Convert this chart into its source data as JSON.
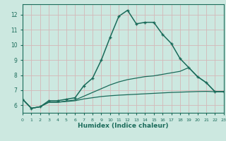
{
  "xlabel": "Humidex (Indice chaleur)",
  "bg_color": "#cce8e0",
  "grid_color": "#b8d8d0",
  "line_color": "#1a6b5a",
  "spine_color": "#1a6b5a",
  "x_data": [
    0,
    1,
    2,
    3,
    4,
    5,
    6,
    7,
    8,
    9,
    10,
    11,
    12,
    13,
    14,
    15,
    16,
    17,
    18,
    19,
    20,
    21,
    22,
    23
  ],
  "main_line": [
    6.4,
    5.8,
    5.9,
    6.3,
    6.3,
    6.4,
    6.5,
    7.3,
    7.8,
    9.0,
    10.5,
    11.9,
    12.3,
    11.4,
    11.5,
    11.5,
    10.7,
    10.1,
    9.1,
    8.5,
    7.9,
    7.5,
    6.9,
    6.9
  ],
  "line2": [
    6.4,
    5.8,
    5.9,
    6.2,
    6.2,
    6.28,
    6.35,
    6.6,
    6.85,
    7.1,
    7.35,
    7.55,
    7.7,
    7.8,
    7.9,
    7.95,
    8.05,
    8.15,
    8.25,
    8.5,
    7.9,
    7.5,
    6.9,
    6.9
  ],
  "line3": [
    6.4,
    5.8,
    5.9,
    6.2,
    6.2,
    6.25,
    6.3,
    6.42,
    6.5,
    6.58,
    6.63,
    6.67,
    6.7,
    6.73,
    6.76,
    6.79,
    6.82,
    6.85,
    6.87,
    6.89,
    6.91,
    6.92,
    6.9,
    6.9
  ],
  "xlim": [
    0,
    23
  ],
  "ylim": [
    5.5,
    12.7
  ],
  "yticks": [
    6,
    7,
    8,
    9,
    10,
    11,
    12
  ],
  "xticks": [
    0,
    1,
    2,
    3,
    4,
    5,
    6,
    7,
    8,
    9,
    10,
    11,
    12,
    13,
    14,
    15,
    16,
    17,
    18,
    19,
    20,
    21,
    22,
    23
  ]
}
